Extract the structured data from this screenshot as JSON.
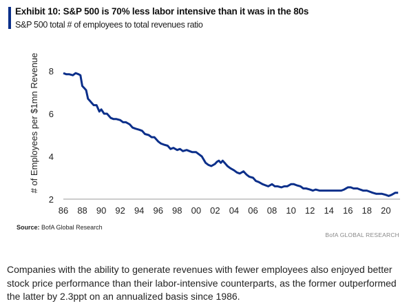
{
  "header": {
    "title": "Exhibit 10: S&P 500 is 70% less labor intensive than it was in the 80s",
    "subtitle": "S&P 500 total # of employees to total revenues ratio"
  },
  "source": {
    "label": "Source:",
    "text": "BofA Global Research"
  },
  "brand": "BofA GLOBAL RESEARCH",
  "caption": "Companies with the ability to generate revenues with fewer employees also enjoyed better stock price performance than their labor-intensive counterparts, as the former outperformed the latter by 2.3ppt on an annualized basis since 1986.",
  "colors": {
    "accent": "#0b2f8a",
    "line": "#0b2f8a"
  },
  "chart_data": {
    "type": "line",
    "title": "S&P 500 total # of employees to total revenues ratio",
    "ylabel": "# of Employees per $1mn Revenue",
    "xlabel": "",
    "xlim": [
      1986,
      2021.5
    ],
    "ylim": [
      2,
      9
    ],
    "grid": false,
    "x_ticks": [
      1986,
      1988,
      1990,
      1992,
      1994,
      1996,
      1998,
      2000,
      2002,
      2004,
      2006,
      2008,
      2010,
      2012,
      2014,
      2016,
      2018,
      2020
    ],
    "x_tick_labels": [
      "86",
      "88",
      "90",
      "92",
      "94",
      "96",
      "98",
      "00",
      "02",
      "04",
      "06",
      "08",
      "10",
      "12",
      "14",
      "16",
      "18",
      "20"
    ],
    "y_ticks": [
      2,
      4,
      6,
      8
    ],
    "y_tick_labels": [
      "2",
      "4",
      "6",
      "8"
    ],
    "series": [
      {
        "x": [
          1986.0,
          1986.3,
          1986.6,
          1987.0,
          1987.3,
          1987.6,
          1987.8,
          1988.0,
          1988.2,
          1988.4,
          1988.6,
          1988.8,
          1989.0,
          1989.2,
          1989.5,
          1989.8,
          1990.0,
          1990.3,
          1990.6,
          1991.0,
          1991.3,
          1991.6,
          1992.0,
          1992.3,
          1992.6,
          1993.0,
          1993.3,
          1993.6,
          1994.0,
          1994.3,
          1994.6,
          1995.0,
          1995.3,
          1995.6,
          1996.0,
          1996.3,
          1996.6,
          1997.0,
          1997.3,
          1997.6,
          1998.0,
          1998.3,
          1998.6,
          1999.0,
          1999.3,
          1999.6,
          2000.0,
          2000.3,
          2000.6,
          2001.0,
          2001.3,
          2001.6,
          2002.0,
          2002.2,
          2002.4,
          2002.6,
          2002.8,
          2003.0,
          2003.3,
          2003.6,
          2004.0,
          2004.3,
          2004.6,
          2005.0,
          2005.3,
          2005.6,
          2006.0,
          2006.3,
          2006.6,
          2007.0,
          2007.3,
          2007.6,
          2008.0,
          2008.3,
          2008.6,
          2009.0,
          2009.3,
          2009.6,
          2010.0,
          2010.3,
          2010.6,
          2011.0,
          2011.3,
          2011.6,
          2012.0,
          2012.3,
          2012.6,
          2013.0,
          2013.3,
          2013.6,
          2014.0,
          2014.3,
          2014.6,
          2015.0,
          2015.3,
          2015.6,
          2016.0,
          2016.3,
          2016.6,
          2017.0,
          2017.3,
          2017.6,
          2018.0,
          2018.3,
          2018.6,
          2019.0,
          2019.3,
          2019.6,
          2020.0,
          2020.3,
          2020.6,
          2021.0,
          2021.3
        ],
        "y": [
          7.9,
          7.85,
          7.85,
          7.8,
          7.9,
          7.85,
          7.8,
          7.3,
          7.2,
          7.1,
          6.7,
          6.6,
          6.5,
          6.4,
          6.4,
          6.1,
          6.2,
          6.0,
          6.0,
          5.8,
          5.75,
          5.75,
          5.7,
          5.6,
          5.6,
          5.5,
          5.35,
          5.3,
          5.25,
          5.2,
          5.05,
          5.0,
          4.9,
          4.9,
          4.7,
          4.6,
          4.55,
          4.5,
          4.35,
          4.4,
          4.3,
          4.35,
          4.25,
          4.3,
          4.25,
          4.2,
          4.2,
          4.1,
          4.0,
          3.7,
          3.6,
          3.55,
          3.65,
          3.75,
          3.8,
          3.7,
          3.8,
          3.7,
          3.55,
          3.45,
          3.35,
          3.25,
          3.2,
          3.3,
          3.15,
          3.05,
          3.0,
          2.85,
          2.8,
          2.7,
          2.65,
          2.6,
          2.7,
          2.6,
          2.6,
          2.55,
          2.6,
          2.6,
          2.7,
          2.7,
          2.65,
          2.6,
          2.5,
          2.5,
          2.45,
          2.4,
          2.45,
          2.4,
          2.4,
          2.4,
          2.4,
          2.4,
          2.4,
          2.4,
          2.4,
          2.45,
          2.55,
          2.55,
          2.5,
          2.5,
          2.45,
          2.4,
          2.4,
          2.35,
          2.3,
          2.25,
          2.25,
          2.25,
          2.2,
          2.15,
          2.2,
          2.3,
          2.3
        ]
      }
    ]
  }
}
